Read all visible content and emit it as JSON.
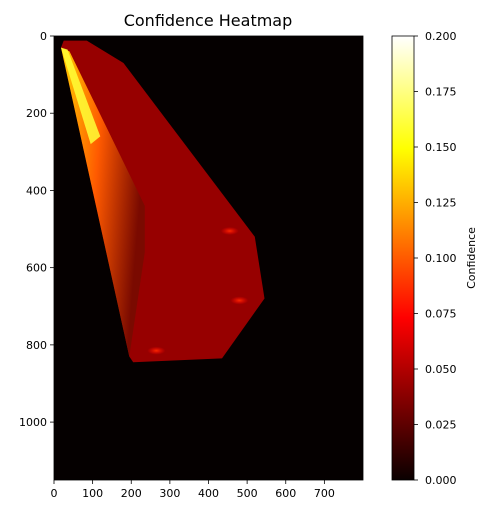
{
  "chart_data": {
    "type": "heatmap",
    "title": "Confidence Heatmap",
    "colormap": "hot",
    "background_color": "#050000",
    "x": {
      "range": [
        0,
        800
      ],
      "ticks": [
        "0",
        "100",
        "200",
        "300",
        "400",
        "500",
        "600",
        "700"
      ]
    },
    "y": {
      "range": [
        0,
        1150
      ],
      "inverted": true,
      "ticks": [
        "0",
        "200",
        "400",
        "600",
        "800",
        "1000"
      ]
    },
    "colorbar": {
      "label": "Confidence",
      "range": [
        0,
        0.2
      ],
      "ticks": [
        "0.000",
        "0.025",
        "0.050",
        "0.075",
        "0.100",
        "0.125",
        "0.150",
        "0.175",
        "0.200"
      ]
    },
    "regions": [
      {
        "name": "main-region",
        "value": 0.042,
        "outline": [
          [
            18,
            30
          ],
          [
            25,
            12
          ],
          [
            85,
            12
          ],
          [
            180,
            70
          ],
          [
            520,
            520
          ],
          [
            545,
            680
          ],
          [
            435,
            835
          ],
          [
            205,
            845
          ],
          [
            195,
            830
          ]
        ]
      },
      {
        "name": "bright-streak",
        "value": 0.13,
        "outline": [
          [
            18,
            30
          ],
          [
            40,
            40
          ],
          [
            235,
            440
          ],
          [
            235,
            560
          ],
          [
            195,
            830
          ]
        ]
      },
      {
        "name": "inner-streak",
        "value": 0.16,
        "outline": [
          [
            18,
            30
          ],
          [
            35,
            35
          ],
          [
            120,
            260
          ],
          [
            95,
            280
          ]
        ]
      }
    ],
    "hotspots": [
      {
        "x": 455,
        "y": 505,
        "value": 0.075
      },
      {
        "x": 480,
        "y": 685,
        "value": 0.08
      },
      {
        "x": 265,
        "y": 815,
        "value": 0.065
      }
    ]
  }
}
